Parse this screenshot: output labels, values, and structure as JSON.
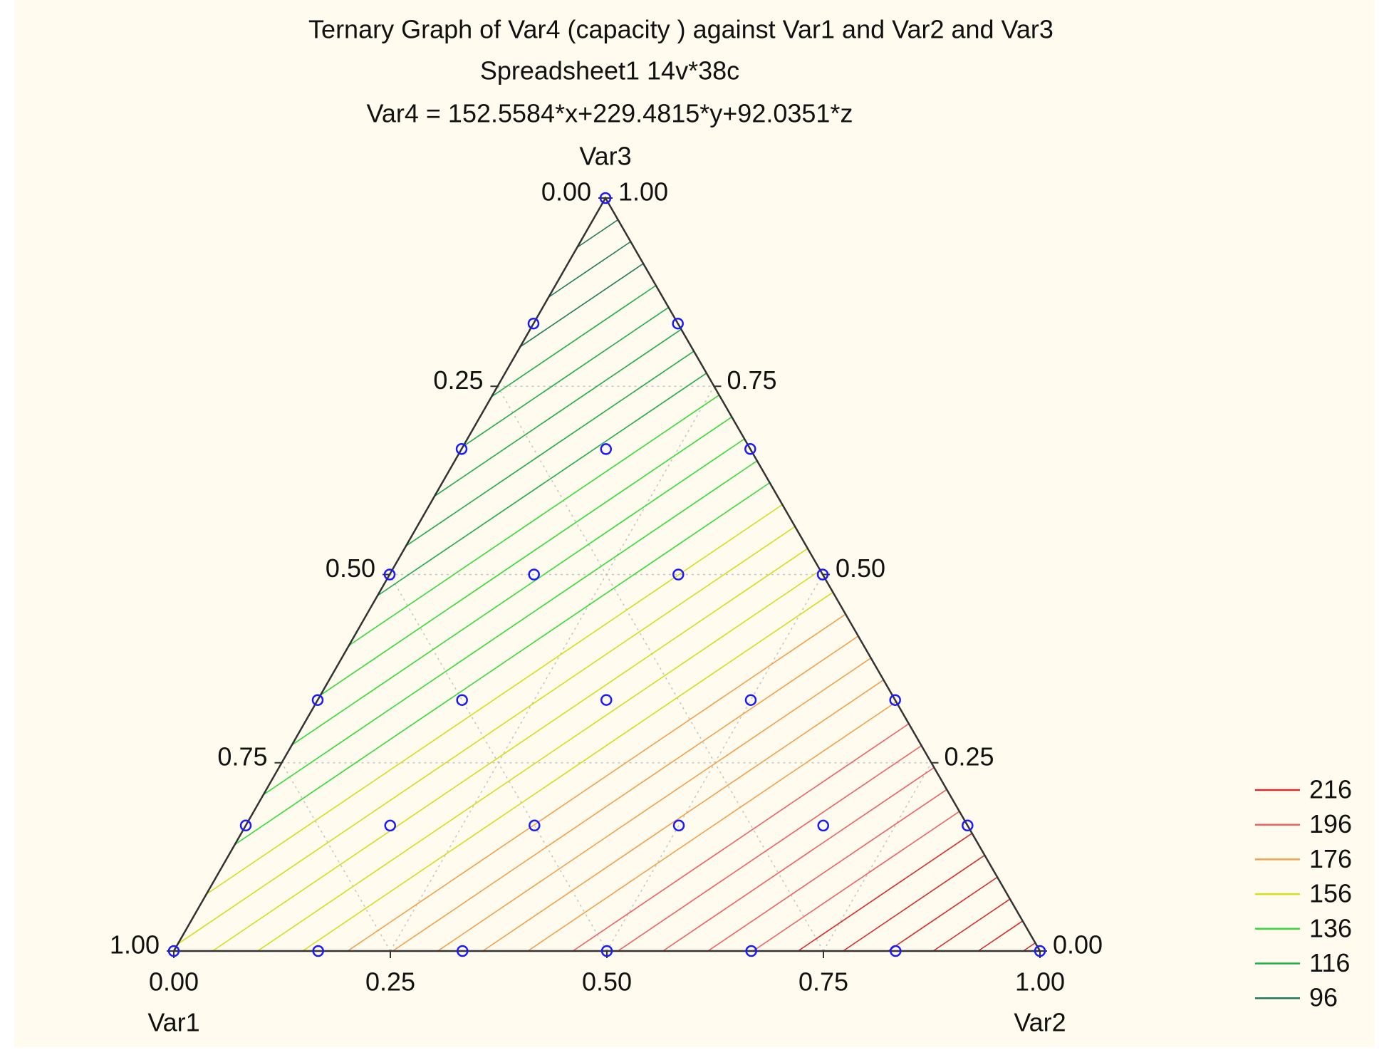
{
  "chart_data": {
    "type": "ternary-contour",
    "title": "Ternary Graph of Var4  (capacity ) against Var1 and Var2 and Var3",
    "subtitle": "Spreadsheet1 14v*38c",
    "equation": "Var4 = 152.5584*x+229.4815*y+92.0351*z",
    "coefficients": [
      152.5584,
      229.4815,
      92.0351
    ],
    "contour_step": 4,
    "grid": true,
    "axes": [
      {
        "label": "Var1",
        "ticks": [
          {
            "value": 1,
            "label": "1.00"
          },
          {
            "value": 0.75,
            "label": "0.75"
          },
          {
            "value": 0.5,
            "label": "0.50"
          },
          {
            "value": 0.25,
            "label": "0.25"
          },
          {
            "value": 0,
            "label": "0.00"
          }
        ]
      },
      {
        "label": "Var2",
        "ticks": [
          {
            "value": 0,
            "label": "0.00"
          },
          {
            "value": 0.25,
            "label": "0.25"
          },
          {
            "value": 0.5,
            "label": "0.50"
          },
          {
            "value": 0.75,
            "label": "0.75"
          },
          {
            "value": 1,
            "label": "1.00"
          }
        ]
      },
      {
        "label": "Var3",
        "ticks": [
          {
            "value": 0,
            "label": "0.00"
          },
          {
            "value": 0.25,
            "label": "0.25"
          },
          {
            "value": 0.5,
            "label": "0.50"
          },
          {
            "value": 0.75,
            "label": "0.75"
          },
          {
            "value": 1,
            "label": "1.00"
          }
        ]
      }
    ],
    "points": {
      "color": "#1a1aff",
      "var1": [
        1,
        0.8333,
        0.6667,
        0.5,
        0.3333,
        0.1667,
        0,
        0.8333,
        0.6667,
        0.5,
        0.3333,
        0.1667,
        0,
        0.6667,
        0.5,
        0.3333,
        0.1667,
        0,
        0.5,
        0.3333,
        0.1667,
        0,
        0.3333,
        0.1667,
        0,
        0.1667,
        0,
        0
      ],
      "var2": [
        0,
        0.1667,
        0.3333,
        0.5,
        0.6667,
        0.8333,
        1,
        0,
        0.1667,
        0.3333,
        0.5,
        0.6667,
        0.8333,
        0,
        0.1667,
        0.3333,
        0.5,
        0.6667,
        0,
        0.1667,
        0.3333,
        0.5,
        0,
        0.1667,
        0.3333,
        0,
        0.1667,
        0
      ],
      "var3": [
        0,
        0,
        0,
        0,
        0,
        0,
        0,
        0.1667,
        0.1667,
        0.1667,
        0.1667,
        0.1667,
        0.1667,
        0.3333,
        0.3333,
        0.3333,
        0.3333,
        0.3333,
        0.5,
        0.5,
        0.5,
        0.5,
        0.6667,
        0.6667,
        0.6667,
        0.8333,
        0.8333,
        1
      ]
    },
    "legend": {
      "levels": [
        216,
        196,
        176,
        156,
        136,
        116,
        96
      ],
      "colors": [
        "#d92b2b",
        "#f26060",
        "#f5a04a",
        "#d8dc1e",
        "#34dc34",
        "#1fae46",
        "#1f7a5c"
      ]
    }
  }
}
